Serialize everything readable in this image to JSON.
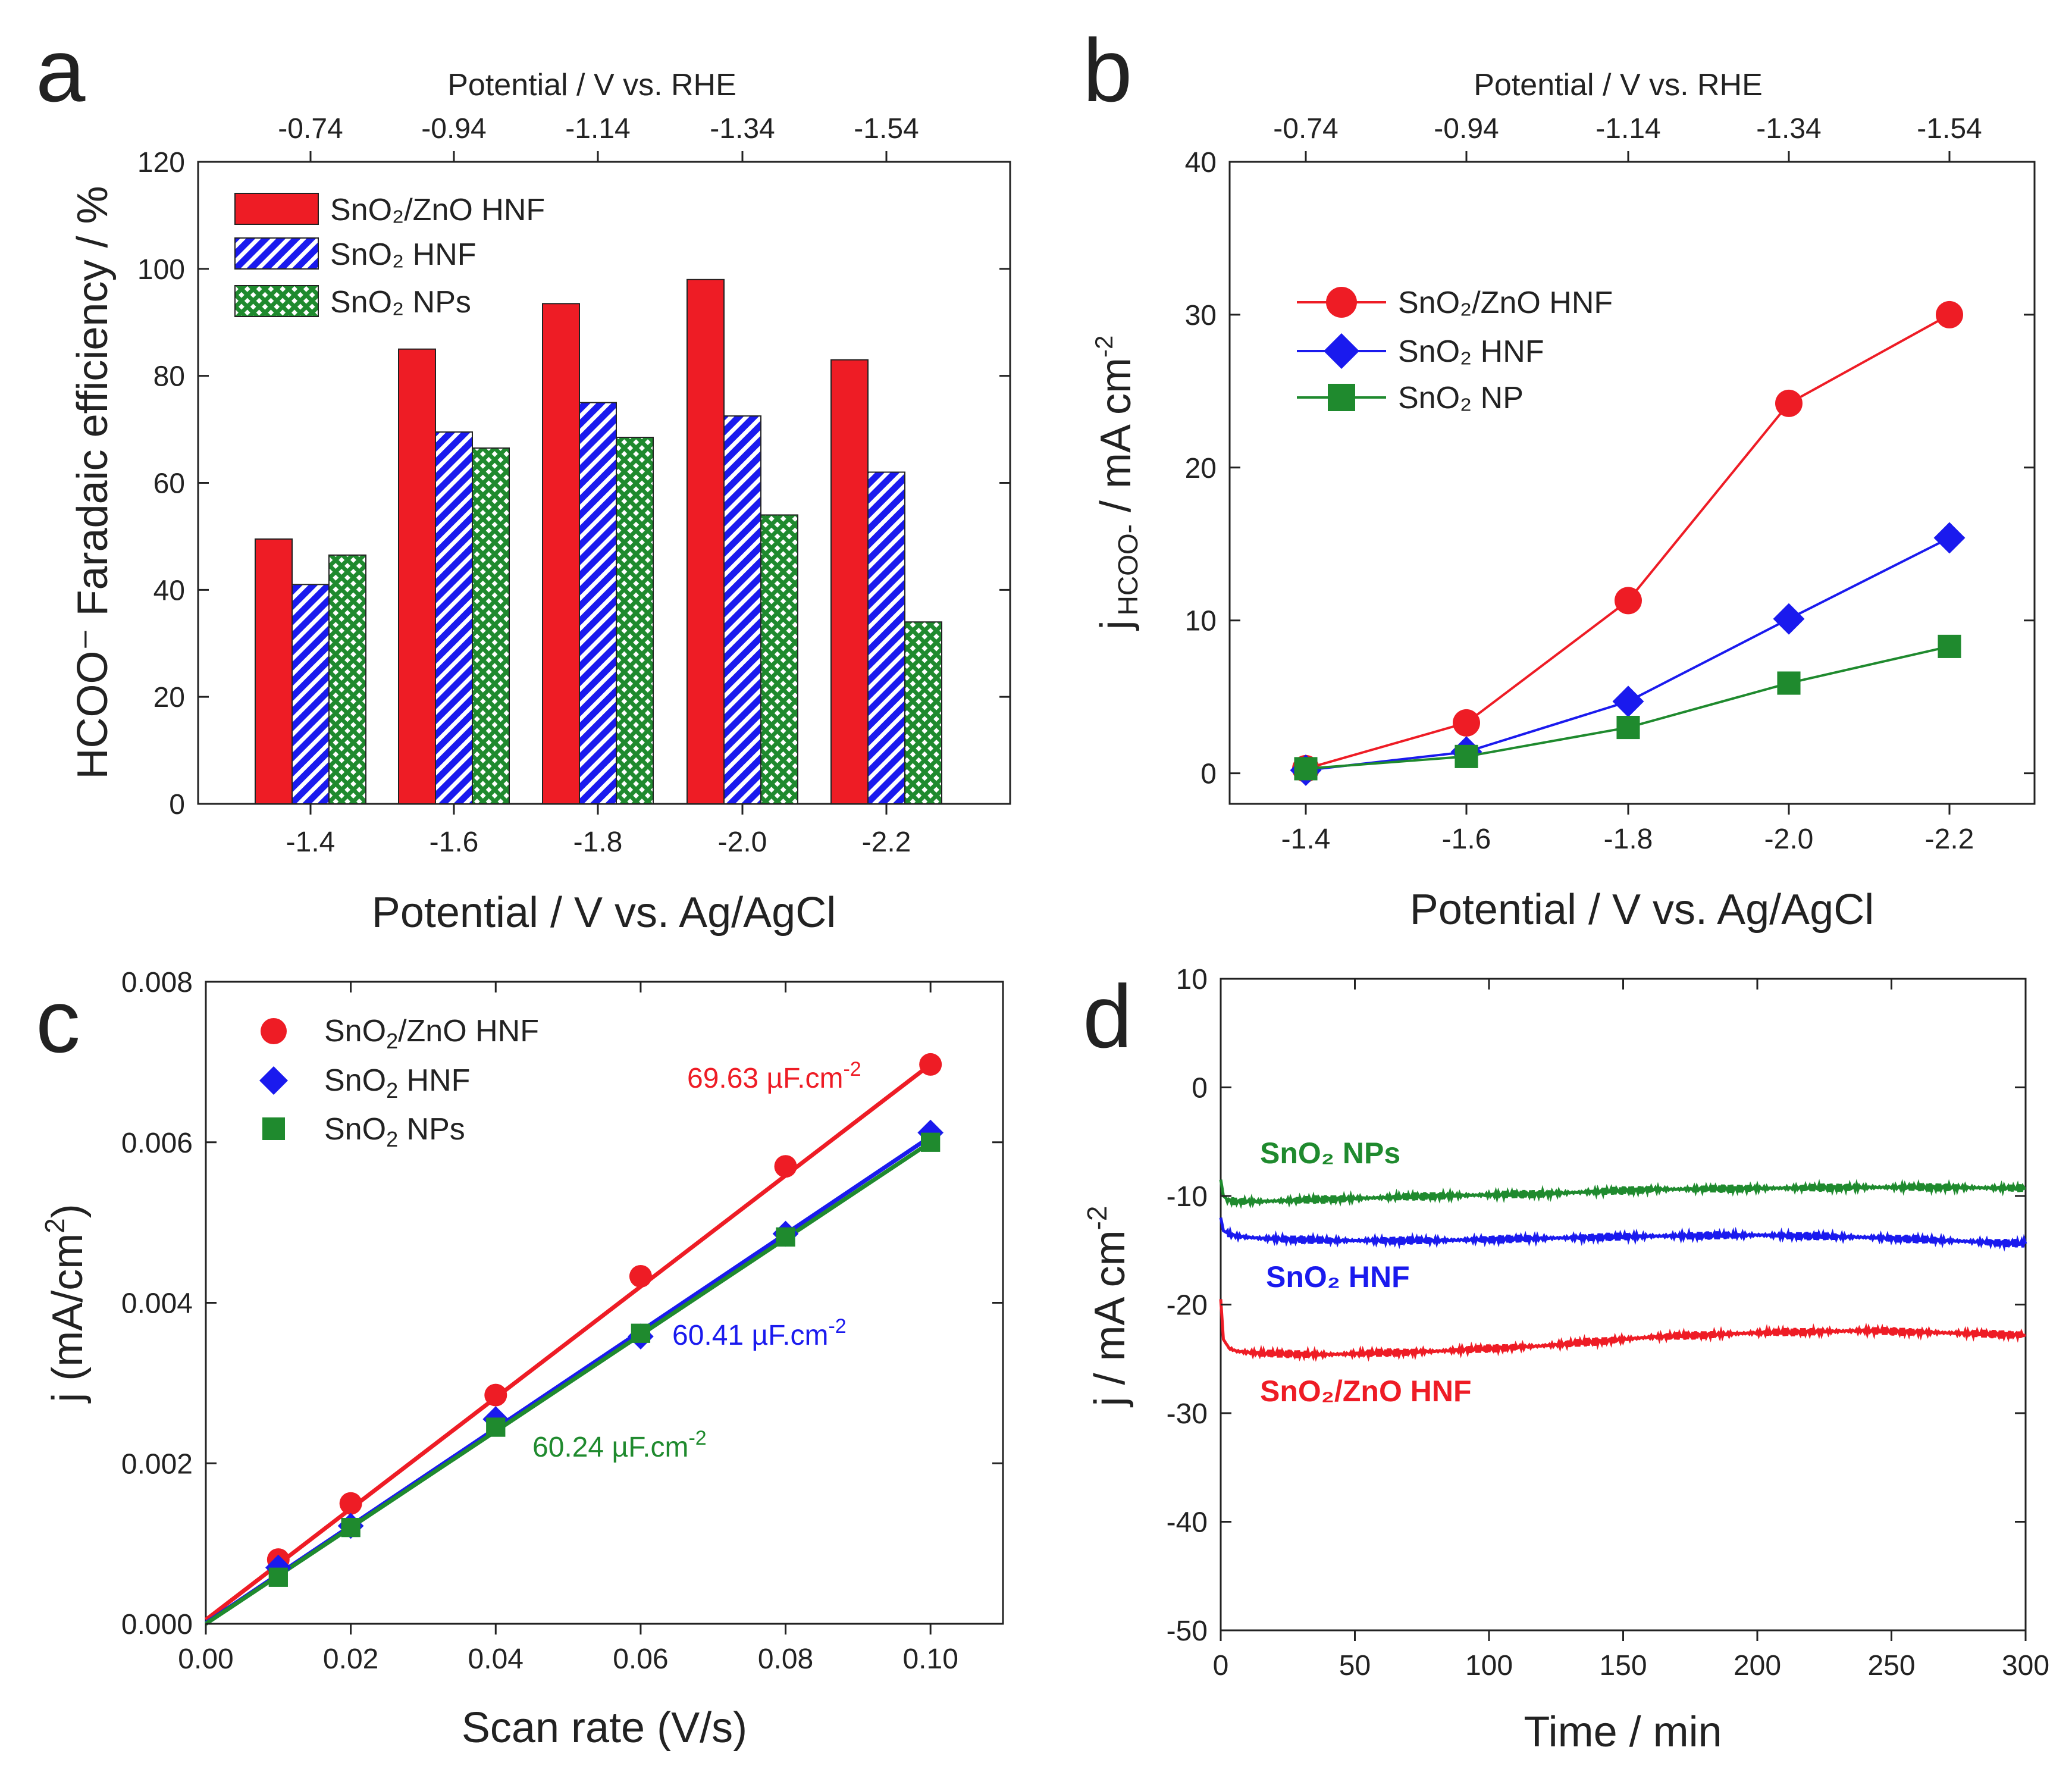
{
  "figure": {
    "colors": {
      "red": "#ee1c25",
      "blue": "#1a1aee",
      "green": "#1f8a2e",
      "axis": "#222222"
    }
  },
  "chart_data": [
    {
      "panel": "a",
      "type": "bar",
      "xlabel": "Potential / V vs. Ag/AgCl",
      "ylabel": "HCOO⁻ Faradaic efficiency / %",
      "top_xlabel": "Potential / V vs. RHE",
      "categories": [
        "-1.4",
        "-1.6",
        "-1.8",
        "-2.0",
        "-2.2"
      ],
      "top_tick_labels": [
        "-0.74",
        "-0.94",
        "-1.14",
        "-1.34",
        "-1.54"
      ],
      "ylim": [
        0,
        120
      ],
      "yticks": [
        0,
        20,
        40,
        60,
        80,
        100,
        120
      ],
      "legend_position": "top-left",
      "series": [
        {
          "name": "SnO₂/ZnO HNF",
          "color": "#ee1c25",
          "pattern": "solid",
          "values": [
            49.5,
            85,
            93.5,
            98,
            83
          ]
        },
        {
          "name": "SnO₂ HNF",
          "color": "#1a1aee",
          "pattern": "diagonal",
          "values": [
            41,
            69.5,
            75,
            72.5,
            62
          ]
        },
        {
          "name": "SnO₂ NPs",
          "color": "#1f8a2e",
          "pattern": "crosshatch",
          "values": [
            46.5,
            66.5,
            68.5,
            54,
            34
          ]
        }
      ]
    },
    {
      "panel": "b",
      "type": "line",
      "xlabel": "Potential / V vs. Ag/AgCl",
      "ylabel": "j HCOO- / mA cm-2",
      "ylabel_parts": {
        "main": "j",
        "sub": "HCOO-",
        "unit": " / mA cm",
        "sup": "-2"
      },
      "top_xlabel": "Potential / V vs. RHE",
      "categories": [
        "-1.4",
        "-1.6",
        "-1.8",
        "-2.0",
        "-2.2"
      ],
      "top_tick_labels": [
        "-0.74",
        "-0.94",
        "-1.14",
        "-1.34",
        "-1.54"
      ],
      "ylim": [
        -2,
        40
      ],
      "yticks": [
        0,
        10,
        20,
        30,
        40
      ],
      "legend_position": "top-left",
      "series": [
        {
          "name": "SnO₂/ZnO HNF",
          "color": "#ee1c25",
          "marker": "circle",
          "values": [
            0.3,
            3.3,
            11.3,
            24.2,
            30
          ]
        },
        {
          "name": "SnO₂ HNF",
          "color": "#1a1aee",
          "marker": "diamond",
          "values": [
            0.2,
            1.4,
            4.7,
            10.1,
            15.4
          ]
        },
        {
          "name": "SnO₂ NP",
          "color": "#1f8a2e",
          "marker": "square",
          "values": [
            0.3,
            1.1,
            3.0,
            5.9,
            8.3
          ]
        }
      ]
    },
    {
      "panel": "c",
      "type": "scatter",
      "xlabel": "Scan rate (V/s)",
      "ylabel": "j (mA/cm2)",
      "ylabel_parts": {
        "main": "j (mA/cm",
        "sup": "2",
        "end": ")"
      },
      "xlim": [
        0,
        0.11
      ],
      "ylim": [
        0,
        0.008
      ],
      "xticks": [
        "0.00",
        "0.02",
        "0.04",
        "0.06",
        "0.08",
        "0.10"
      ],
      "yticks": [
        "0.000",
        "0.002",
        "0.004",
        "0.006",
        "0.008"
      ],
      "legend_position": "top-left",
      "x": [
        0.01,
        0.02,
        0.04,
        0.06,
        0.08,
        0.1
      ],
      "series": [
        {
          "name": "SnO2/ZnO HNF",
          "name_parts": [
            "SnO",
            "2",
            "/ZnO HNF"
          ],
          "color": "#ee1c25",
          "marker": "circle",
          "values": [
            0.0008,
            0.0015,
            0.00285,
            0.00433,
            0.0057,
            0.00697
          ],
          "fit": [
            5e-05,
            0.00697
          ],
          "annotation": "69.63 µF.cm",
          "annotation_sup": "-2"
        },
        {
          "name": "SnO2 HNF",
          "name_parts": [
            "SnO",
            "2",
            " HNF"
          ],
          "color": "#1a1aee",
          "marker": "diamond",
          "values": [
            0.0007,
            0.00122,
            0.00255,
            0.00358,
            0.00486,
            0.00612
          ],
          "fit": [
            1e-05,
            0.00607
          ],
          "annotation": "60.41 µF.cm",
          "annotation_sup": "-2"
        },
        {
          "name": "SnO2 NPs",
          "name_parts": [
            "SnO",
            "2",
            " NPs"
          ],
          "color": "#1f8a2e",
          "marker": "square",
          "values": [
            0.00058,
            0.0012,
            0.00245,
            0.00362,
            0.00482,
            0.006
          ],
          "fit": [
            0.0,
            0.006
          ],
          "annotation": "60.24 µF.cm",
          "annotation_sup": "-2"
        }
      ]
    },
    {
      "panel": "d",
      "type": "line",
      "xlabel": "Time / min",
      "ylabel": "j / mA cm-2",
      "ylabel_parts": {
        "main": "j / mA cm",
        "sup": "-2"
      },
      "xlim": [
        0,
        300
      ],
      "ylim": [
        -50,
        10
      ],
      "xticks": [
        0,
        50,
        100,
        150,
        200,
        250,
        300
      ],
      "yticks": [
        -50,
        -40,
        -30,
        -20,
        -10,
        0,
        10
      ],
      "series": [
        {
          "name": "SnO₂ NPs",
          "color": "#1f8a2e",
          "x": [
            0,
            1,
            3,
            6,
            15,
            40,
            80,
            120,
            160,
            200,
            240,
            270,
            300
          ],
          "values": [
            -8.5,
            -10.0,
            -10.4,
            -10.5,
            -10.5,
            -10.3,
            -10.0,
            -9.8,
            -9.4,
            -9.3,
            -9.2,
            -9.2,
            -9.3
          ]
        },
        {
          "name": "SnO₂ HNF",
          "color": "#1a1aee",
          "x": [
            0,
            1,
            3,
            6,
            15,
            40,
            80,
            120,
            160,
            200,
            240,
            270,
            300
          ],
          "values": [
            -12.0,
            -13.2,
            -13.5,
            -13.7,
            -13.9,
            -14.1,
            -14.1,
            -13.9,
            -13.7,
            -13.6,
            -13.8,
            -14.1,
            -14.4
          ]
        },
        {
          "name": "SnO₂/ZnO HNF",
          "color": "#ee1c25",
          "x": [
            0,
            1,
            3,
            6,
            15,
            40,
            80,
            120,
            160,
            200,
            240,
            270,
            300
          ],
          "values": [
            -19.5,
            -23.2,
            -24.0,
            -24.3,
            -24.5,
            -24.6,
            -24.3,
            -23.8,
            -23.0,
            -22.6,
            -22.4,
            -22.6,
            -22.8
          ]
        }
      ]
    }
  ],
  "panels": {
    "a": {
      "letter": "a"
    },
    "b": {
      "letter": "b"
    },
    "c": {
      "letter": "c"
    },
    "d": {
      "letter": "d"
    }
  },
  "legend_b": [
    "SnO₂/ZnO HNF",
    "SnO₂ HNF",
    "SnO₂ NP"
  ],
  "legend_a": [
    "SnO₂/ZnO HNF",
    "SnO₂ HNF",
    "SnO₂ NPs"
  ],
  "labels_d": [
    "SnO₂ NPs",
    "SnO₂ HNF",
    "SnO₂/ZnO HNF"
  ]
}
